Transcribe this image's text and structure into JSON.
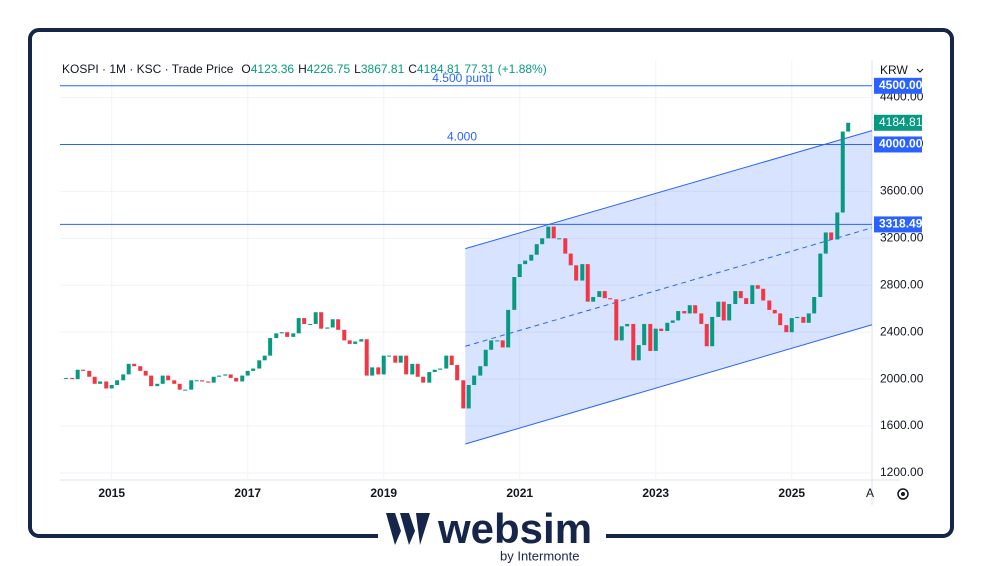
{
  "chart_data": {
    "type": "candlestick",
    "header": {
      "symbol": "KOSPI · 1M · KSC · Trade Price",
      "ohlc": [
        {
          "key": "O",
          "value": "4123.36"
        },
        {
          "key": "H",
          "value": "4226.75"
        },
        {
          "key": "L",
          "value": "3867.81"
        },
        {
          "key": "C",
          "value": "4184.81"
        }
      ],
      "change": "77.31 (+1.88%)"
    },
    "currency": "KRW",
    "x": [
      2014.33,
      2014.42,
      2014.5,
      2014.58,
      2014.67,
      2014.75,
      2014.83,
      2014.92,
      2015,
      2015.08,
      2015.17,
      2015.25,
      2015.33,
      2015.42,
      2015.5,
      2015.58,
      2015.67,
      2015.75,
      2015.83,
      2015.92,
      2016,
      2016.08,
      2016.17,
      2016.25,
      2016.33,
      2016.42,
      2016.5,
      2016.58,
      2016.67,
      2016.75,
      2016.83,
      2016.92,
      2017,
      2017.08,
      2017.17,
      2017.25,
      2017.33,
      2017.42,
      2017.5,
      2017.58,
      2017.67,
      2017.75,
      2017.83,
      2017.92,
      2018,
      2018.08,
      2018.17,
      2018.25,
      2018.33,
      2018.42,
      2018.5,
      2018.58,
      2018.67,
      2018.75,
      2018.83,
      2018.92,
      2019,
      2019.08,
      2019.17,
      2019.25,
      2019.33,
      2019.42,
      2019.5,
      2019.58,
      2019.67,
      2019.75,
      2019.83,
      2019.92,
      2020,
      2020.08,
      2020.17,
      2020.25,
      2020.33,
      2020.42,
      2020.5,
      2020.58,
      2020.67,
      2020.75,
      2020.83,
      2020.92,
      2021,
      2021.08,
      2021.17,
      2021.25,
      2021.33,
      2021.42,
      2021.5,
      2021.58,
      2021.67,
      2021.75,
      2021.83,
      2021.92,
      2022,
      2022.08,
      2022.17,
      2022.25,
      2022.33,
      2022.42,
      2022.5,
      2022.58,
      2022.67,
      2022.75,
      2022.83,
      2022.92,
      2023,
      2023.08,
      2023.17,
      2023.25,
      2023.33,
      2023.42,
      2023.5,
      2023.58,
      2023.67,
      2023.75,
      2023.83,
      2023.92,
      2024,
      2024.08,
      2024.17,
      2024.25,
      2024.33,
      2024.42,
      2024.5,
      2024.58,
      2024.67,
      2024.75,
      2024.83,
      2024.92,
      2025,
      2025.08,
      2025.17,
      2025.25,
      2025.33,
      2025.42,
      2025.5,
      2025.58,
      2025.67,
      2025.75,
      2025.83
    ],
    "close": [
      2010,
      2000,
      2080,
      2070,
      2020,
      1960,
      1980,
      1920,
      1950,
      1990,
      2040,
      2130,
      2110,
      2070,
      2030,
      1940,
      1960,
      2030,
      1990,
      1960,
      1910,
      1910,
      1990,
      1990,
      1980,
      1970,
      2020,
      2030,
      2040,
      2010,
      1980,
      2030,
      2070,
      2090,
      2160,
      2200,
      2350,
      2390,
      2400,
      2360,
      2390,
      2520,
      2470,
      2470,
      2570,
      2430,
      2440,
      2510,
      2420,
      2330,
      2300,
      2320,
      2340,
      2030,
      2100,
      2040,
      2200,
      2200,
      2140,
      2200,
      2040,
      2130,
      2020,
      1970,
      2060,
      2080,
      2090,
      2200,
      2120,
      1990,
      1750,
      1950,
      2030,
      2110,
      2250,
      2330,
      2330,
      2270,
      2590,
      2870,
      2980,
      3010,
      3060,
      3150,
      3200,
      3300,
      3200,
      3200,
      3070,
      2970,
      2840,
      2980,
      2660,
      2700,
      2750,
      2690,
      2680,
      2330,
      2450,
      2470,
      2160,
      2290,
      2470,
      2240,
      2430,
      2410,
      2480,
      2500,
      2580,
      2560,
      2630,
      2560,
      2470,
      2280,
      2530,
      2660,
      2500,
      2640,
      2750,
      2690,
      2640,
      2800,
      2770,
      2670,
      2590,
      2560,
      2460,
      2400,
      2520,
      2530,
      2480,
      2560,
      2700,
      3070,
      3250,
      3190,
      3420,
      4110,
      4184.81
    ],
    "last_label": "4184.81",
    "up_color": "#089981",
    "down_color": "#f23645",
    "channel": {
      "x": [
        2020.2,
        2026.18
      ],
      "upper": [
        3112,
        4118
      ],
      "middle": [
        2280,
        3290
      ],
      "lower": [
        1447,
        2463
      ],
      "color": "#2962ff"
    },
    "levels": [
      {
        "value": 4500,
        "label": "4.500 punti",
        "tag": "4500.00"
      },
      {
        "value": 4000,
        "label": "4.000",
        "tag": "4000.00"
      },
      {
        "value": 3318.49,
        "tag": "3318.49"
      }
    ],
    "xlim": [
      2014.24,
      2026.18
    ],
    "ylim": [
      1140,
      4720
    ],
    "xticks": [
      2015,
      2017,
      2019,
      2021,
      2023,
      2025
    ],
    "x_edge_label": "A",
    "yticks": [
      {
        "value": 1200,
        "label": "1200.00"
      },
      {
        "value": 1600,
        "label": "1600.00"
      },
      {
        "value": 2000,
        "label": "2000.00"
      },
      {
        "value": 2400,
        "label": "2400.00"
      },
      {
        "value": 2800,
        "label": "2800.00"
      },
      {
        "value": 3200,
        "label": "3200.00"
      },
      {
        "value": 3600,
        "label": "3600.00"
      },
      {
        "value": 4000,
        "label": "4000.00"
      },
      {
        "value": 4400,
        "label": "4400.00"
      }
    ],
    "grid": true
  },
  "logo": {
    "name": "websim",
    "by": "by Intermonte"
  }
}
